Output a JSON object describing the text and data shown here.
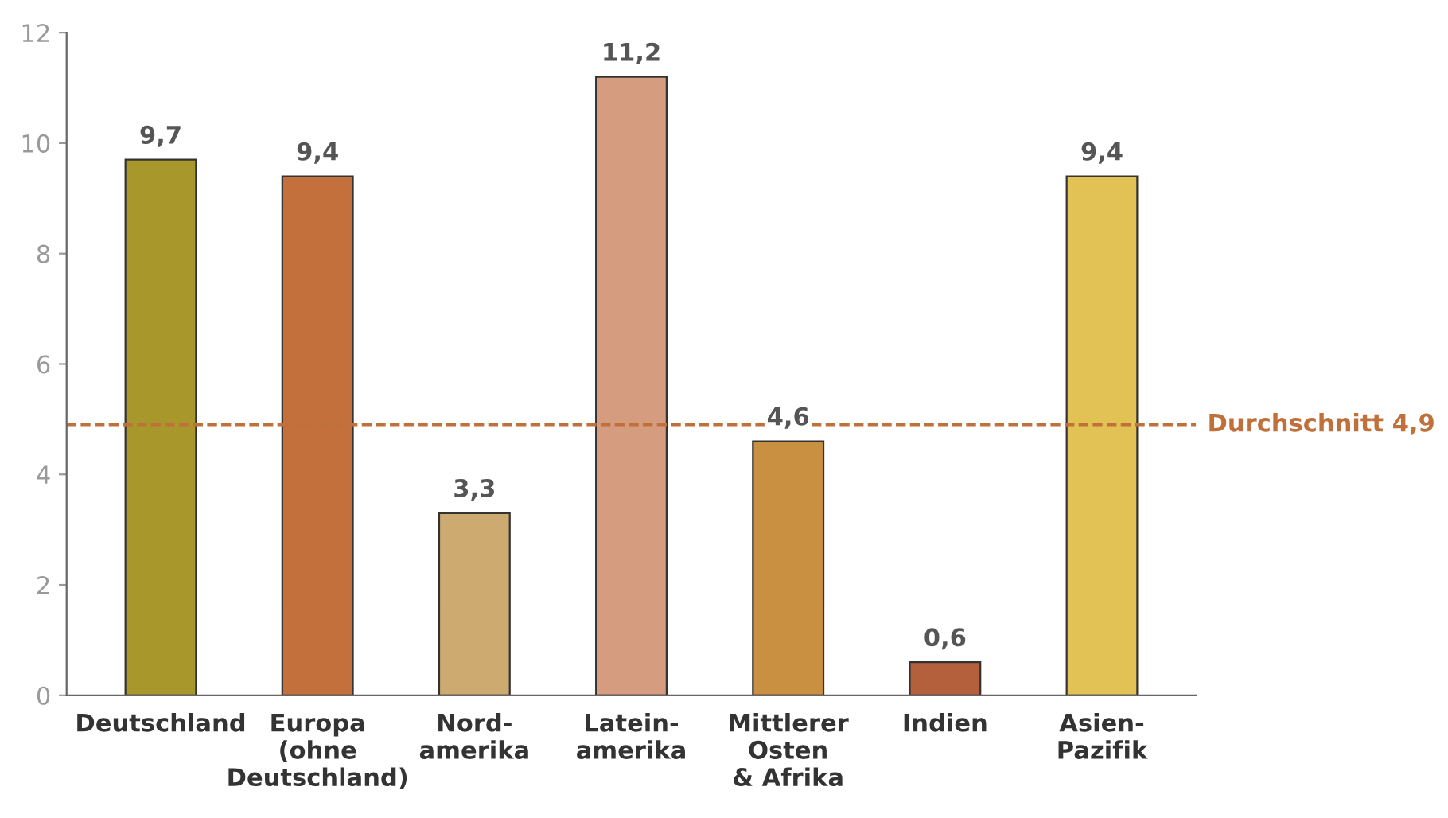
{
  "chart_data": {
    "type": "bar",
    "categories": [
      "Deutschland",
      "Europa\n(ohne\nDeutschland)",
      "Nord-\namerika",
      "Latein-\namerika",
      "Mittlerer\nOsten\n& Afrika",
      "Indien",
      "Asien-\nPazifik"
    ],
    "values": [
      9.7,
      9.4,
      3.3,
      11.2,
      4.6,
      0.6,
      9.4
    ],
    "colors": [
      "#a8982c",
      "#c4703c",
      "#ccaa70",
      "#d69c80",
      "#c89040",
      "#b4603c",
      "#e2c254"
    ],
    "value_labels": [
      "9,7",
      "9,4",
      "3,3",
      "11,2",
      "4,6",
      "0,6",
      "9,4"
    ],
    "ylim": [
      0,
      12
    ],
    "yticks": [
      0,
      2,
      4,
      6,
      8,
      10,
      12
    ],
    "ref_lines": [
      {
        "axis": "y",
        "value": 4.9,
        "label": "Durchschnitt 4,9",
        "color": "#c0703a",
        "line_style": "dashed"
      }
    ],
    "grid": false
  }
}
